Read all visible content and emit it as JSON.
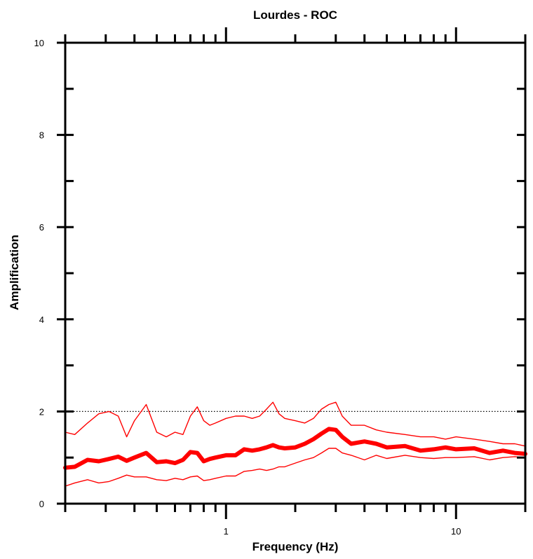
{
  "chart_data": {
    "type": "line",
    "title": "Lourdes - ROC",
    "xlabel": "Frequency (Hz)",
    "ylabel": "Amplification",
    "xscale": "log",
    "xlim": [
      0.2,
      20
    ],
    "ylim": [
      0,
      10
    ],
    "x_tick_labels": [
      "1",
      "10"
    ],
    "y_tick_labels": [
      "0",
      "2",
      "4",
      "6",
      "8",
      "10"
    ],
    "reference_line": {
      "y": 2,
      "style": "dotted",
      "color": "#000000"
    },
    "colors": {
      "series": "#ff0000",
      "axis": "#000000"
    },
    "grid": false,
    "series": [
      {
        "role": "upper",
        "x": [
          0.2,
          0.22,
          0.25,
          0.28,
          0.31,
          0.34,
          0.37,
          0.4,
          0.45,
          0.5,
          0.55,
          0.6,
          0.65,
          0.7,
          0.75,
          0.8,
          0.85,
          0.9,
          1.0,
          1.1,
          1.2,
          1.3,
          1.4,
          1.5,
          1.6,
          1.7,
          1.8,
          2.0,
          2.2,
          2.4,
          2.6,
          2.8,
          3.0,
          3.2,
          3.5,
          4.0,
          4.5,
          5.0,
          6.0,
          7.0,
          8.0,
          9.0,
          10.0,
          12.0,
          14.0,
          16.0,
          18.0,
          20.0
        ],
        "y": [
          1.55,
          1.5,
          1.75,
          1.95,
          2.0,
          1.9,
          1.45,
          1.8,
          2.15,
          1.55,
          1.45,
          1.55,
          1.5,
          1.9,
          2.1,
          1.8,
          1.7,
          1.75,
          1.85,
          1.9,
          1.9,
          1.85,
          1.9,
          2.05,
          2.2,
          1.95,
          1.85,
          1.8,
          1.75,
          1.85,
          2.05,
          2.15,
          2.2,
          1.9,
          1.7,
          1.7,
          1.6,
          1.55,
          1.5,
          1.45,
          1.45,
          1.4,
          1.45,
          1.4,
          1.35,
          1.3,
          1.3,
          1.25
        ]
      },
      {
        "role": "mean",
        "x": [
          0.2,
          0.22,
          0.25,
          0.28,
          0.31,
          0.34,
          0.37,
          0.4,
          0.45,
          0.5,
          0.55,
          0.6,
          0.65,
          0.7,
          0.75,
          0.8,
          0.85,
          0.9,
          1.0,
          1.1,
          1.2,
          1.3,
          1.4,
          1.5,
          1.6,
          1.7,
          1.8,
          2.0,
          2.2,
          2.4,
          2.6,
          2.8,
          3.0,
          3.2,
          3.5,
          4.0,
          4.5,
          5.0,
          6.0,
          7.0,
          8.0,
          9.0,
          10.0,
          12.0,
          14.0,
          16.0,
          18.0,
          20.0
        ],
        "y": [
          0.78,
          0.8,
          0.95,
          0.92,
          0.97,
          1.02,
          0.93,
          1.0,
          1.1,
          0.9,
          0.92,
          0.88,
          0.95,
          1.12,
          1.1,
          0.92,
          0.97,
          1.0,
          1.05,
          1.05,
          1.18,
          1.15,
          1.18,
          1.22,
          1.27,
          1.22,
          1.2,
          1.22,
          1.3,
          1.4,
          1.52,
          1.62,
          1.6,
          1.45,
          1.3,
          1.35,
          1.3,
          1.22,
          1.25,
          1.15,
          1.18,
          1.22,
          1.18,
          1.2,
          1.1,
          1.15,
          1.1,
          1.08
        ]
      },
      {
        "role": "lower",
        "x": [
          0.2,
          0.22,
          0.25,
          0.28,
          0.31,
          0.34,
          0.37,
          0.4,
          0.45,
          0.5,
          0.55,
          0.6,
          0.65,
          0.7,
          0.75,
          0.8,
          0.85,
          0.9,
          1.0,
          1.1,
          1.2,
          1.3,
          1.4,
          1.5,
          1.6,
          1.7,
          1.8,
          2.0,
          2.2,
          2.4,
          2.6,
          2.8,
          3.0,
          3.2,
          3.5,
          4.0,
          4.5,
          5.0,
          6.0,
          7.0,
          8.0,
          9.0,
          10.0,
          12.0,
          14.0,
          16.0,
          18.0,
          20.0
        ],
        "y": [
          0.38,
          0.45,
          0.52,
          0.45,
          0.48,
          0.55,
          0.62,
          0.58,
          0.58,
          0.52,
          0.5,
          0.55,
          0.52,
          0.58,
          0.6,
          0.5,
          0.52,
          0.55,
          0.6,
          0.6,
          0.7,
          0.72,
          0.75,
          0.72,
          0.75,
          0.8,
          0.8,
          0.88,
          0.95,
          1.0,
          1.1,
          1.2,
          1.2,
          1.1,
          1.05,
          0.95,
          1.05,
          0.98,
          1.05,
          1.0,
          0.98,
          1.0,
          1.0,
          1.02,
          0.95,
          1.0,
          1.02,
          1.0
        ]
      }
    ]
  }
}
